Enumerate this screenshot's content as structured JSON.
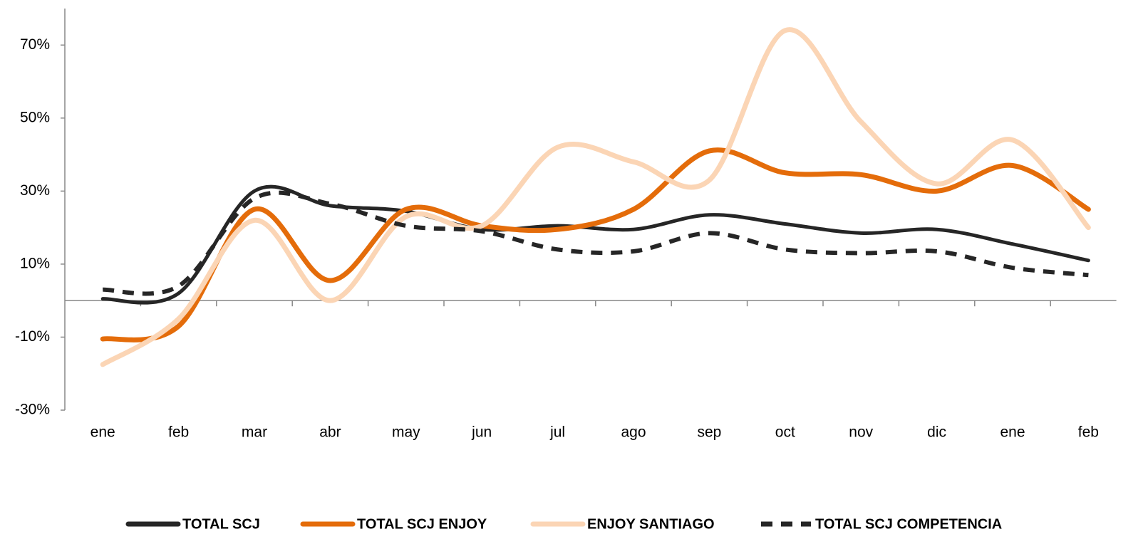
{
  "chart_data": {
    "type": "line",
    "categories": [
      "ene",
      "feb",
      "mar",
      "abr",
      "may",
      "jun",
      "jul",
      "ago",
      "sep",
      "oct",
      "nov",
      "dic",
      "ene",
      "feb"
    ],
    "series": [
      {
        "name": "TOTAL SCJ",
        "color": "#262626",
        "dashed": false,
        "values": [
          0.5,
          2,
          30,
          26,
          24.5,
          19.5,
          20.5,
          19.5,
          23.5,
          21,
          18.5,
          19.5,
          15.5,
          11
        ]
      },
      {
        "name": "TOTAL SCJ ENJOY",
        "color": "#e46c0a",
        "dashed": false,
        "values": [
          -10.5,
          -7,
          25,
          5.5,
          25,
          20.5,
          19.5,
          25,
          41,
          35,
          34.5,
          30,
          37,
          25
        ]
      },
      {
        "name": "ENJOY SANTIAGO",
        "color": "#fbd5b5",
        "dashed": false,
        "values": [
          -17.5,
          -5,
          22,
          0,
          23,
          20.5,
          42,
          38,
          33,
          74,
          49,
          32,
          44,
          20
        ]
      },
      {
        "name": "TOTAL SCJ COMPETENCIA",
        "color": "#262626",
        "dashed": true,
        "values": [
          3,
          4,
          28,
          26.5,
          20.5,
          19,
          14,
          13.5,
          18.5,
          14,
          13,
          13.5,
          9,
          7
        ]
      }
    ],
    "ylim": [
      -30,
      80
    ],
    "yticks": [
      {
        "value": -30,
        "label": "-30%"
      },
      {
        "value": -10,
        "label": "-10%"
      },
      {
        "value": 10,
        "label": "10%"
      },
      {
        "value": 30,
        "label": "30%"
      },
      {
        "value": 50,
        "label": "50%"
      },
      {
        "value": 70,
        "label": "70%"
      }
    ],
    "legend": "bottom"
  }
}
